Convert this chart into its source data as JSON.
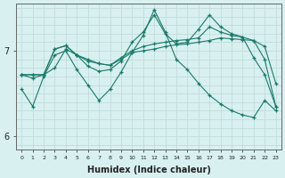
{
  "xlabel": "Humidex (Indice chaleur)",
  "bg_color": "#d8f0f0",
  "line_color": "#1a7a6a",
  "grid_color": "#c0dcdc",
  "xlim": [
    -0.5,
    23.5
  ],
  "ylim": [
    5.85,
    7.55
  ],
  "yticks": [
    6,
    7
  ],
  "xticks": [
    0,
    1,
    2,
    3,
    4,
    5,
    6,
    7,
    8,
    9,
    10,
    11,
    12,
    13,
    14,
    15,
    16,
    17,
    18,
    19,
    20,
    21,
    22,
    23
  ],
  "series": [
    [
      6.72,
      6.68,
      6.72,
      6.8,
      7.02,
      6.95,
      6.9,
      6.85,
      6.83,
      6.9,
      6.98,
      7.0,
      7.02,
      7.05,
      7.07,
      7.08,
      7.1,
      7.12,
      7.15,
      7.14,
      7.13,
      7.12,
      7.05,
      6.62
    ],
    [
      6.72,
      6.72,
      6.72,
      7.02,
      7.06,
      6.95,
      6.88,
      6.85,
      6.83,
      6.92,
      7.0,
      7.05,
      7.08,
      7.1,
      7.12,
      7.13,
      7.15,
      7.28,
      7.22,
      7.18,
      7.16,
      7.12,
      6.9,
      6.35
    ],
    [
      6.72,
      6.72,
      6.72,
      7.02,
      7.06,
      6.95,
      6.82,
      6.76,
      6.78,
      6.88,
      7.1,
      7.22,
      7.42,
      7.2,
      7.08,
      7.1,
      7.25,
      7.42,
      7.28,
      7.2,
      7.16,
      6.92,
      6.72,
      6.35
    ],
    [
      6.55,
      6.35,
      6.7,
      6.95,
      7.0,
      6.78,
      6.6,
      6.42,
      6.55,
      6.75,
      6.98,
      7.18,
      7.48,
      7.22,
      6.9,
      6.78,
      6.62,
      6.48,
      6.38,
      6.3,
      6.25,
      6.22,
      6.42,
      6.3
    ]
  ]
}
